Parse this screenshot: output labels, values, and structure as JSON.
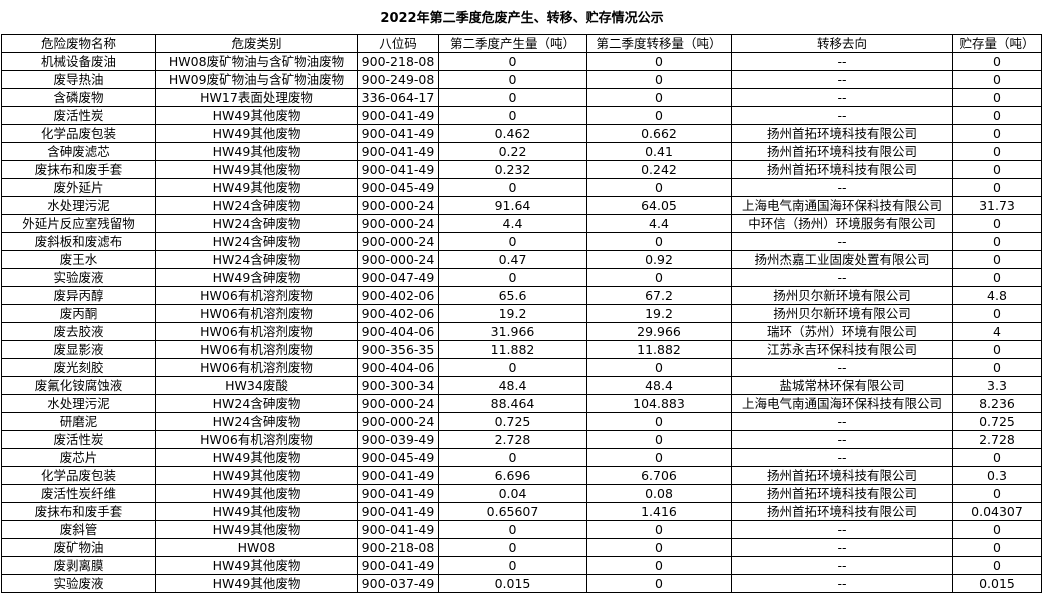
{
  "title": "2022年第二季度危废产生、转移、贮存情况公示",
  "columns": [
    "危险废物名称",
    "危废类别",
    "八位码",
    "第二季度产生量（吨）",
    "第二季度转移量（吨）",
    "转移去向",
    "贮存量（吨）"
  ],
  "rows": [
    [
      "机械设备废油",
      "HW08废矿物油与含矿物油废物",
      "900-218-08",
      "0",
      "0",
      "--",
      "0"
    ],
    [
      "废导热油",
      "HW09废矿物油与含矿物油废物",
      "900-249-08",
      "0",
      "0",
      "--",
      "0"
    ],
    [
      "含磷废物",
      "HW17表面处理废物",
      "336-064-17",
      "0",
      "0",
      "--",
      "0"
    ],
    [
      "废活性炭",
      "HW49其他废物",
      "900-041-49",
      "0",
      "0",
      "--",
      "0"
    ],
    [
      "化学品废包装",
      "HW49其他废物",
      "900-041-49",
      "0.462",
      "0.662",
      "扬州首拓环境科技有限公司",
      "0"
    ],
    [
      "含砷废滤芯",
      "HW49其他废物",
      "900-041-49",
      "0.22",
      "0.41",
      "扬州首拓环境科技有限公司",
      "0"
    ],
    [
      "废抹布和废手套",
      "HW49其他废物",
      "900-041-49",
      "0.232",
      "0.242",
      "扬州首拓环境科技有限公司",
      "0"
    ],
    [
      "废外延片",
      "HW49其他废物",
      "900-045-49",
      "0",
      "0",
      "--",
      "0"
    ],
    [
      "水处理污泥",
      "HW24含砷废物",
      "900-000-24",
      "91.64",
      "64.05",
      "上海电气南通国海环保科技有限公司",
      "31.73"
    ],
    [
      "外延片反应室残留物",
      "HW24含砷废物",
      "900-000-24",
      "4.4",
      "4.4",
      "中环信（扬州）环境服务有限公司",
      "0"
    ],
    [
      "废斜板和废滤布",
      "HW24含砷废物",
      "900-000-24",
      "0",
      "0",
      "--",
      "0"
    ],
    [
      "废王水",
      "HW24含砷废物",
      "900-000-24",
      "0.47",
      "0.92",
      "扬州杰嘉工业固废处置有限公司",
      "0"
    ],
    [
      "实验废液",
      "HW49含砷废物",
      "900-047-49",
      "0",
      "0",
      "--",
      "0"
    ],
    [
      "废异丙醇",
      "HW06有机溶剂废物",
      "900-402-06",
      "65.6",
      "67.2",
      "扬州贝尔新环境有限公司",
      "4.8"
    ],
    [
      "废丙酮",
      "HW06有机溶剂废物",
      "900-402-06",
      "19.2",
      "19.2",
      "扬州贝尔新环境有限公司",
      "0"
    ],
    [
      "废去胶液",
      "HW06有机溶剂废物",
      "900-404-06",
      "31.966",
      "29.966",
      "瑞环（苏州）环境有限公司",
      "4"
    ],
    [
      "废显影液",
      "HW06有机溶剂废物",
      "900-356-35",
      "11.882",
      "11.882",
      "江苏永吉环保科技有限公司",
      "0"
    ],
    [
      "废光刻胶",
      "HW06有机溶剂废物",
      "900-404-06",
      "0",
      "0",
      "--",
      "0"
    ],
    [
      "废氟化铵腐蚀液",
      "HW34废酸",
      "900-300-34",
      "48.4",
      "48.4",
      "盐城常林环保有限公司",
      "3.3"
    ],
    [
      "水处理污泥",
      "HW24含砷废物",
      "900-000-24",
      "88.464",
      "104.883",
      "上海电气南通国海环保科技有限公司",
      "8.236"
    ],
    [
      "研磨泥",
      "HW24含砷废物",
      "900-000-24",
      "0.725",
      "0",
      "--",
      "0.725"
    ],
    [
      "废活性炭",
      "HW06有机溶剂废物",
      "900-039-49",
      "2.728",
      "0",
      "--",
      "2.728"
    ],
    [
      "废芯片",
      "HW49其他废物",
      "900-045-49",
      "0",
      "0",
      "--",
      "0"
    ],
    [
      "化学品废包装",
      "HW49其他废物",
      "900-041-49",
      "6.696",
      "6.706",
      "扬州首拓环境科技有限公司",
      "0.3"
    ],
    [
      "废活性炭纤维",
      "HW49其他废物",
      "900-041-49",
      "0.04",
      "0.08",
      "扬州首拓环境科技有限公司",
      "0"
    ],
    [
      "废抹布和废手套",
      "HW49其他废物",
      "900-041-49",
      "0.65607",
      "1.416",
      "扬州首拓环境科技有限公司",
      "0.04307"
    ],
    [
      "废斜管",
      "HW49其他废物",
      "900-041-49",
      "0",
      "0",
      "--",
      "0"
    ],
    [
      "废矿物油",
      "HW08",
      "900-218-08",
      "0",
      "0",
      "--",
      "0"
    ],
    [
      "废剥离膜",
      "HW49其他废物",
      "900-041-49",
      "0",
      "0",
      "--",
      "0"
    ],
    [
      "实验废液",
      "HW49其他废物",
      "900-037-49",
      "0.015",
      "0",
      "--",
      "0.015"
    ]
  ]
}
